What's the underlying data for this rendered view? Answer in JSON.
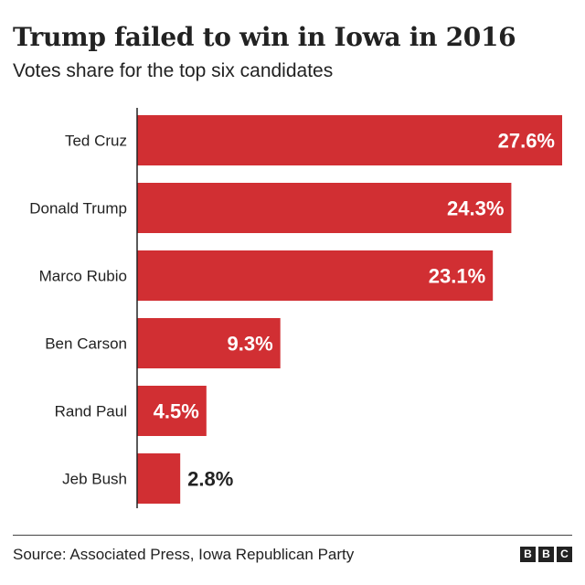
{
  "title": "Trump failed to win in Iowa in 2016",
  "subtitle": "Votes share for the top six candidates",
  "source": "Source: Associated Press, Iowa Republican Party",
  "logo": [
    "B",
    "B",
    "C"
  ],
  "colors": {
    "bar": "#d12f33",
    "axis": "#222222",
    "label_inside": "#ffffff",
    "label_outside": "#222222"
  },
  "chart_data": {
    "type": "bar",
    "orientation": "horizontal",
    "title": "Trump failed to win in Iowa in 2016",
    "subtitle": "Votes share for the top six candidates",
    "categories": [
      "Ted Cruz",
      "Donald Trump",
      "Marco Rubio",
      "Ben Carson",
      "Rand Paul",
      "Jeb Bush"
    ],
    "values": [
      27.6,
      24.3,
      23.1,
      9.3,
      4.5,
      2.8
    ],
    "value_labels": [
      "27.6%",
      "24.3%",
      "23.1%",
      "9.3%",
      "4.5%",
      "2.8%"
    ],
    "unit": "%",
    "xlim": [
      0,
      27.6
    ],
    "grid": false,
    "legend": "none"
  }
}
